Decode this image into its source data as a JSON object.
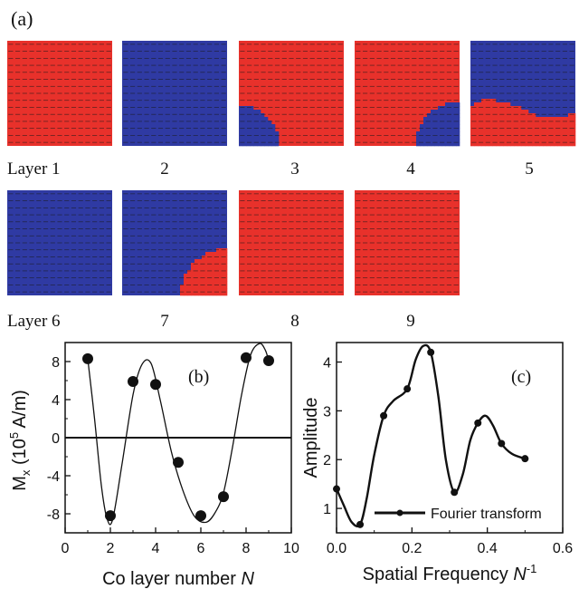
{
  "figure": {
    "panel_a_label": "(a)",
    "layers": [
      {
        "label": "Layer 1",
        "pattern": "uniform-red"
      },
      {
        "label": "2",
        "pattern": "uniform-blue"
      },
      {
        "label": "3",
        "pattern": "red-with-blue-bottom-left"
      },
      {
        "label": "4",
        "pattern": "red-with-blue-bottom-right"
      },
      {
        "label": "5",
        "pattern": "blue-top-red-bottom"
      },
      {
        "label": "Layer 6",
        "pattern": "uniform-blue"
      },
      {
        "label": "7",
        "pattern": "blue-with-red-bottom-right"
      },
      {
        "label": "8",
        "pattern": "uniform-red"
      },
      {
        "label": "9",
        "pattern": "uniform-red"
      }
    ],
    "colors": {
      "red_domain": "#e8312b",
      "blue_domain": "#2f3aa3",
      "arrow": "#1a1a1a"
    }
  },
  "chart_data": [
    {
      "type": "scatter",
      "panel_label": "(b)",
      "xlabel": "Co layer number",
      "xlabel_italic": "N",
      "ylabel": "M",
      "ylabel_sub": "x",
      "ylabel_unit_pre": " (10",
      "ylabel_unit_sup": "5",
      "ylabel_unit_post": " A/m)",
      "xlim": [
        0,
        10
      ],
      "ylim": [
        -10,
        10
      ],
      "xticks": [
        "0",
        "2",
        "4",
        "6",
        "8",
        "10"
      ],
      "yticks": [
        "8",
        "4",
        "0",
        "-4",
        "-8"
      ],
      "points": [
        {
          "x": 1,
          "y": 8.3
        },
        {
          "x": 2,
          "y": -8.2
        },
        {
          "x": 3,
          "y": 5.9
        },
        {
          "x": 4,
          "y": 5.6
        },
        {
          "x": 5,
          "y": -2.6
        },
        {
          "x": 6,
          "y": -8.2
        },
        {
          "x": 7,
          "y": -6.2
        },
        {
          "x": 8,
          "y": 8.4
        },
        {
          "x": 9,
          "y": 8.1
        }
      ],
      "fit_curve": [
        [
          1.0,
          8.3
        ],
        [
          1.3,
          2.0
        ],
        [
          1.6,
          -5.0
        ],
        [
          1.85,
          -8.5
        ],
        [
          2.1,
          -8.6
        ],
        [
          2.5,
          -3.0
        ],
        [
          3.0,
          4.5
        ],
        [
          3.4,
          7.7
        ],
        [
          3.8,
          7.8
        ],
        [
          4.2,
          4.0
        ],
        [
          4.7,
          -1.5
        ],
        [
          5.2,
          -5.5
        ],
        [
          5.7,
          -8.2
        ],
        [
          6.2,
          -8.9
        ],
        [
          6.6,
          -8.0
        ],
        [
          7.0,
          -5.8
        ],
        [
          7.4,
          -1.0
        ],
        [
          7.8,
          4.5
        ],
        [
          8.2,
          8.7
        ],
        [
          8.6,
          9.9
        ],
        [
          8.85,
          9.2
        ],
        [
          9.0,
          8.1
        ]
      ],
      "zero_line": true
    },
    {
      "type": "line",
      "panel_label": "(c)",
      "xlabel": "Spatial Frequency",
      "xlabel_italic": "N",
      "xlabel_sup": "-1",
      "ylabel": "Amplitude",
      "xlim": [
        0.0,
        0.6
      ],
      "ylim": [
        0.5,
        4.4
      ],
      "xticks": [
        "0.0",
        "0.2",
        "0.4",
        "0.6"
      ],
      "yticks": [
        "1",
        "2",
        "3",
        "4"
      ],
      "legend": "Fourier transform",
      "legend_position": "bottom-right",
      "points": [
        {
          "x": 0.0,
          "y": 1.4
        },
        {
          "x": 0.0625,
          "y": 0.67
        },
        {
          "x": 0.125,
          "y": 2.9
        },
        {
          "x": 0.1875,
          "y": 3.45
        },
        {
          "x": 0.25,
          "y": 4.2
        },
        {
          "x": 0.3125,
          "y": 1.33
        },
        {
          "x": 0.375,
          "y": 2.75
        },
        {
          "x": 0.4375,
          "y": 2.33
        },
        {
          "x": 0.5,
          "y": 2.02
        }
      ],
      "smooth_curve": [
        [
          0.0,
          1.4
        ],
        [
          0.02,
          1.05
        ],
        [
          0.04,
          0.72
        ],
        [
          0.0625,
          0.67
        ],
        [
          0.08,
          1.2
        ],
        [
          0.1,
          2.1
        ],
        [
          0.125,
          2.9
        ],
        [
          0.15,
          3.2
        ],
        [
          0.1875,
          3.45
        ],
        [
          0.21,
          4.05
        ],
        [
          0.23,
          4.33
        ],
        [
          0.25,
          4.2
        ],
        [
          0.27,
          3.3
        ],
        [
          0.29,
          2.0
        ],
        [
          0.3125,
          1.33
        ],
        [
          0.335,
          1.7
        ],
        [
          0.355,
          2.4
        ],
        [
          0.375,
          2.75
        ],
        [
          0.395,
          2.9
        ],
        [
          0.415,
          2.7
        ],
        [
          0.4375,
          2.33
        ],
        [
          0.465,
          2.12
        ],
        [
          0.5,
          2.02
        ]
      ]
    }
  ]
}
